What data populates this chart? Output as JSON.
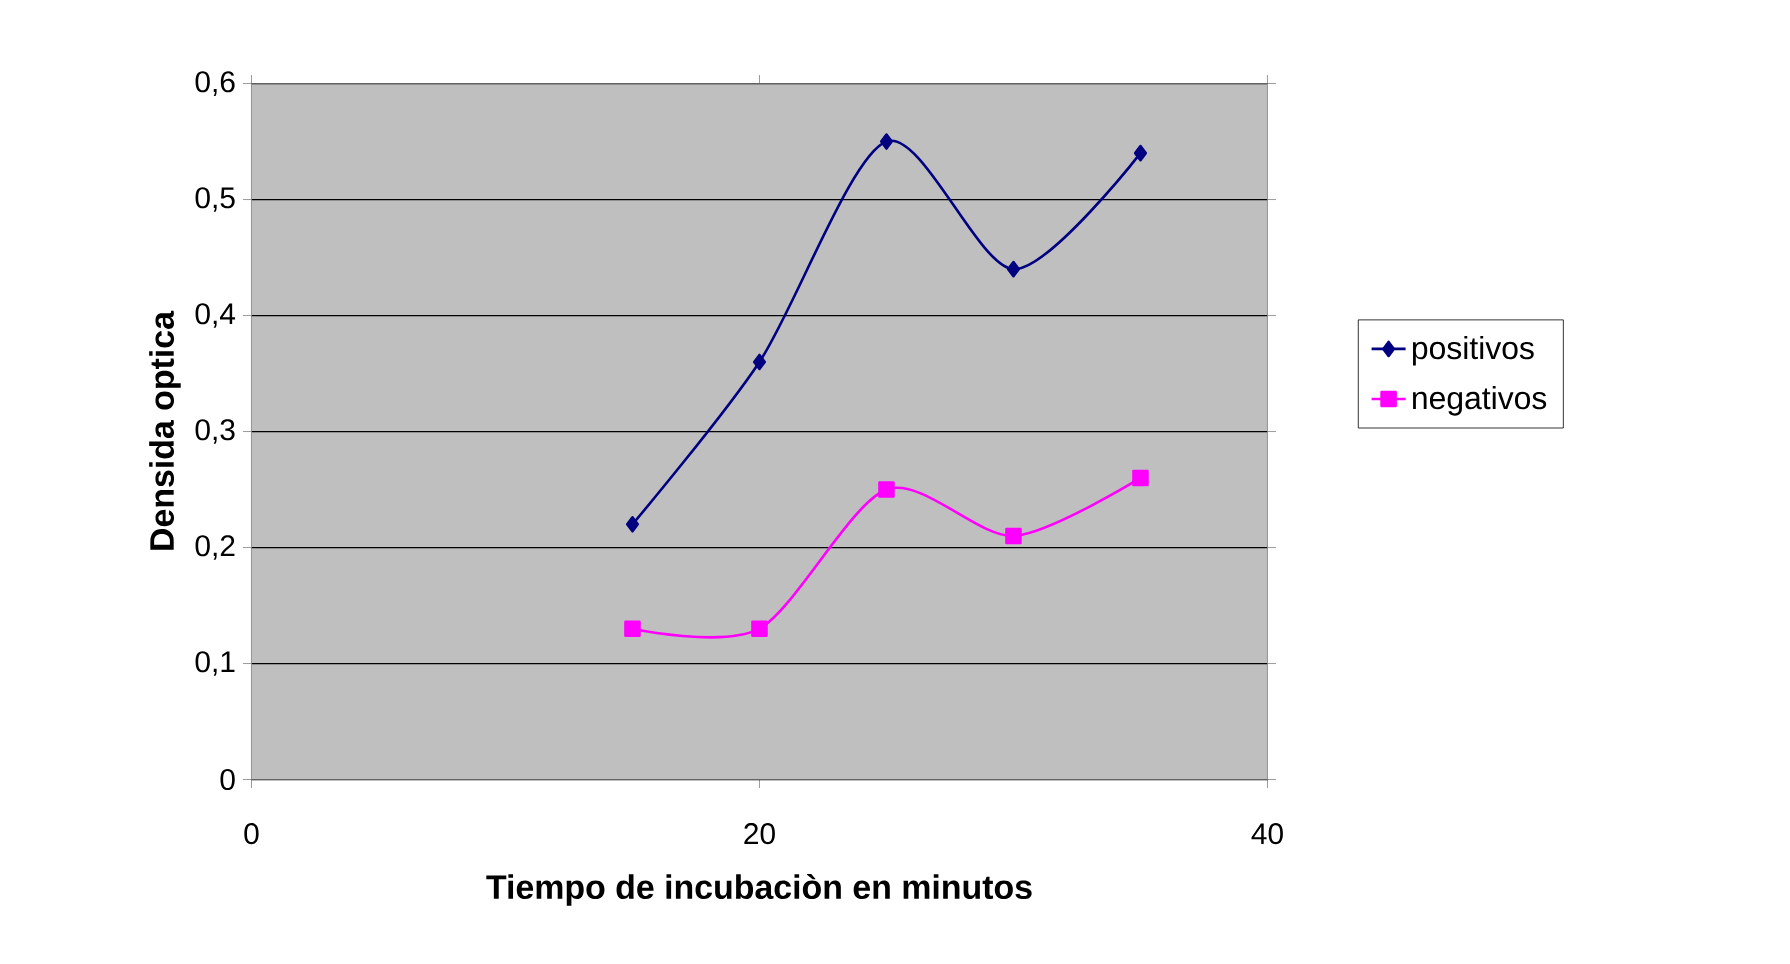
{
  "chart_data": {
    "type": "line",
    "xlabel": "Tiempo de incubaciòn en minutos",
    "ylabel": "Densida optica",
    "x": [
      15,
      20,
      25,
      30,
      35
    ],
    "series": [
      {
        "name": "positivos",
        "color": "#000080",
        "marker": "diamond",
        "values": [
          0.22,
          0.36,
          0.55,
          0.44,
          0.54
        ]
      },
      {
        "name": "negativos",
        "color": "#ff00ff",
        "marker": "square",
        "values": [
          0.13,
          0.13,
          0.25,
          0.21,
          0.26
        ]
      }
    ],
    "xlim": [
      0,
      40
    ],
    "xticks": [
      0,
      20,
      40
    ],
    "ylim": [
      0,
      0.6
    ],
    "yticks": [
      {
        "value": 0,
        "label": "0"
      },
      {
        "value": 0.1,
        "label": "0,1"
      },
      {
        "value": 0.2,
        "label": "0,2"
      },
      {
        "value": 0.3,
        "label": "0,3"
      },
      {
        "value": 0.4,
        "label": "0,4"
      },
      {
        "value": 0.5,
        "label": "0,5"
      },
      {
        "value": 0.6,
        "label": "0,6"
      }
    ],
    "grid": "y",
    "legend": "right"
  }
}
